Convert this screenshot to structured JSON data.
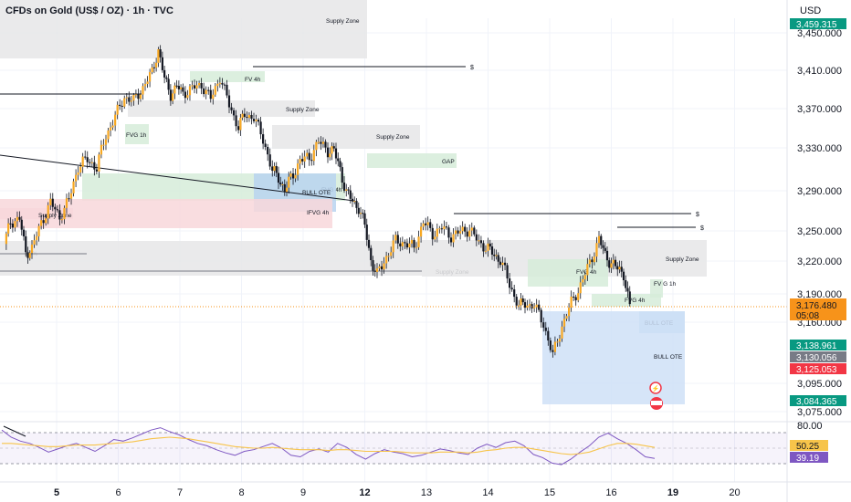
{
  "header": {
    "title": "CFDs on Gold (US$ / OZ) · 1h · TVC",
    "currency": "USD"
  },
  "colors": {
    "up": "#26a69a",
    "down": "#131722",
    "upBody": "#f7a823",
    "downBody": "#131722",
    "rsi": "#7e57c2",
    "rsiMa": "#f7c44a",
    "current": "#f7931a",
    "green": "#089981",
    "red": "#f23645",
    "grey": "#787b86"
  },
  "chart_data": [
    {
      "type": "candlestick",
      "title": "CFDs on Gold (US$ / OZ) · 1h · TVC",
      "ylabel": "USD",
      "ylim": [
        3070,
        3470
      ],
      "y_ticks": [
        "3,450.000",
        "3,410.000",
        "3,370.000",
        "3,330.000",
        "3,290.000",
        "3,250.000",
        "3,220.000",
        "3,190.000",
        "3,160.000",
        "3,095.000",
        "3,075.000"
      ],
      "x_ticks": [
        "5",
        "6",
        "7",
        "8",
        "9",
        "12",
        "13",
        "14",
        "15",
        "16",
        "19",
        "20"
      ],
      "x_day_index": [
        0,
        1,
        2,
        3,
        4,
        5,
        6,
        7,
        8,
        9,
        10.0,
        11.0
      ],
      "close_path": [
        [
          -0.85,
          3237
        ],
        [
          -0.75,
          3259
        ],
        [
          -0.6,
          3262
        ],
        [
          -0.5,
          3228
        ],
        [
          -0.4,
          3233
        ],
        [
          -0.25,
          3258
        ],
        [
          -0.1,
          3278
        ],
        [
          0.05,
          3264
        ],
        [
          0.2,
          3281
        ],
        [
          0.35,
          3313
        ],
        [
          0.5,
          3319
        ],
        [
          0.65,
          3312
        ],
        [
          0.8,
          3342
        ],
        [
          0.95,
          3362
        ],
        [
          1.1,
          3382
        ],
        [
          1.25,
          3378
        ],
        [
          1.4,
          3392
        ],
        [
          1.55,
          3408
        ],
        [
          1.65,
          3432
        ],
        [
          1.75,
          3401
        ],
        [
          1.85,
          3385
        ],
        [
          1.95,
          3393
        ],
        [
          2.05,
          3386
        ],
        [
          2.2,
          3391
        ],
        [
          2.35,
          3395
        ],
        [
          2.5,
          3380
        ],
        [
          2.65,
          3403
        ],
        [
          2.8,
          3374
        ],
        [
          2.95,
          3351
        ],
        [
          3.05,
          3364
        ],
        [
          3.2,
          3361
        ],
        [
          3.35,
          3339
        ],
        [
          3.5,
          3308
        ],
        [
          3.6,
          3303
        ],
        [
          3.7,
          3290
        ],
        [
          3.8,
          3302
        ],
        [
          3.95,
          3318
        ],
        [
          4.1,
          3321
        ],
        [
          4.25,
          3336
        ],
        [
          4.4,
          3328
        ],
        [
          4.5,
          3327
        ],
        [
          4.6,
          3310
        ],
        [
          4.7,
          3288
        ],
        [
          4.8,
          3280
        ],
        [
          4.9,
          3273
        ],
        [
          5.0,
          3255
        ],
        [
          5.1,
          3221
        ],
        [
          5.2,
          3207
        ],
        [
          5.35,
          3224
        ],
        [
          5.5,
          3240
        ],
        [
          5.65,
          3238
        ],
        [
          5.8,
          3233
        ],
        [
          5.95,
          3259
        ],
        [
          6.1,
          3247
        ],
        [
          6.25,
          3253
        ],
        [
          6.4,
          3245
        ],
        [
          6.55,
          3249
        ],
        [
          6.7,
          3252
        ],
        [
          6.85,
          3238
        ],
        [
          7.0,
          3233
        ],
        [
          7.1,
          3225
        ],
        [
          7.2,
          3222
        ],
        [
          7.35,
          3198
        ],
        [
          7.5,
          3178
        ],
        [
          7.6,
          3179
        ],
        [
          7.75,
          3178
        ],
        [
          7.9,
          3158
        ],
        [
          8.05,
          3125
        ],
        [
          8.2,
          3156
        ],
        [
          8.35,
          3181
        ],
        [
          8.5,
          3198
        ],
        [
          8.65,
          3218
        ],
        [
          8.8,
          3242
        ],
        [
          8.9,
          3226
        ],
        [
          9.0,
          3218
        ],
        [
          9.1,
          3213
        ],
        [
          9.2,
          3209
        ],
        [
          9.3,
          3176
        ]
      ],
      "current_price": "3,176.480",
      "countdown": "05:08",
      "price_labels": [
        {
          "text": "3,138.961",
          "color": "green"
        },
        {
          "text": "3,130.056",
          "color": "grey"
        },
        {
          "text": "3,125.053",
          "color": "red"
        },
        {
          "text": "3,084.365",
          "color": "green"
        }
      ],
      "top_partial_label": "3,459.315",
      "zones": [
        {
          "label": "Supply Zone",
          "kind": "grey"
        },
        {
          "label": "FVG 1h",
          "kind": "green"
        },
        {
          "label": "FV 4h",
          "kind": "green"
        },
        {
          "label": "Supply Zone",
          "kind": "grey"
        },
        {
          "label": "Supply Zone",
          "kind": "grey"
        },
        {
          "label": "GAP",
          "kind": "green"
        },
        {
          "label": "FVG 4h",
          "kind": "green"
        },
        {
          "label": "BULL OTE",
          "kind": "blue"
        },
        {
          "label": "IFVG 4h",
          "kind": "red"
        },
        {
          "label": "Supply Zone",
          "kind": "red"
        },
        {
          "label": "50%",
          "kind": "line"
        },
        {
          "label": "Supply Zone",
          "kind": "grey"
        },
        {
          "label": "Supply Zone",
          "kind": "grey"
        },
        {
          "label": "FVG 4h",
          "kind": "green"
        },
        {
          "label": "FVG 4h",
          "kind": "green"
        },
        {
          "label": "FV G 1h",
          "kind": "green"
        },
        {
          "label": "BULL OTE",
          "kind": "blue"
        },
        {
          "label": "BULL OTE",
          "kind": "blue"
        }
      ],
      "liquidity_marks": [
        "$",
        "$",
        "$"
      ]
    },
    {
      "type": "line",
      "title": "",
      "ylim": [
        20,
        85
      ],
      "y_ticks": [
        "80.00"
      ],
      "series": [
        {
          "values": [
            72,
            63,
            58,
            55,
            50,
            44,
            48,
            52,
            55,
            50,
            45,
            52,
            60,
            58,
            62,
            67,
            72,
            75,
            70,
            66,
            60,
            55,
            52,
            47,
            43,
            40,
            45,
            47,
            51,
            55,
            49,
            40,
            38,
            45,
            48,
            44,
            55,
            50,
            41,
            35,
            42,
            47,
            44,
            42,
            38,
            40,
            44,
            48,
            46,
            43,
            41,
            49,
            54,
            50,
            56,
            58,
            52,
            41,
            37,
            30,
            28,
            35,
            44,
            52,
            63,
            68,
            61,
            55,
            47,
            38,
            36
          ]
        },
        {
          "values": [
            55,
            55,
            54,
            53,
            52,
            51,
            51,
            52,
            53,
            53,
            53,
            54,
            55,
            56,
            57,
            59,
            61,
            62,
            63,
            62,
            61,
            59,
            57,
            55,
            53,
            51,
            50,
            49,
            49,
            50,
            49,
            48,
            47,
            47,
            47,
            46,
            47,
            47,
            46,
            45,
            45,
            45,
            45,
            44,
            43,
            43,
            43,
            44,
            44,
            44,
            43,
            44,
            46,
            47,
            49,
            50,
            50,
            48,
            46,
            44,
            42,
            41,
            42,
            44,
            48,
            52,
            55,
            55,
            54,
            52,
            50
          ]
        }
      ],
      "value_labels": [
        "50.25",
        "39.19"
      ]
    }
  ]
}
